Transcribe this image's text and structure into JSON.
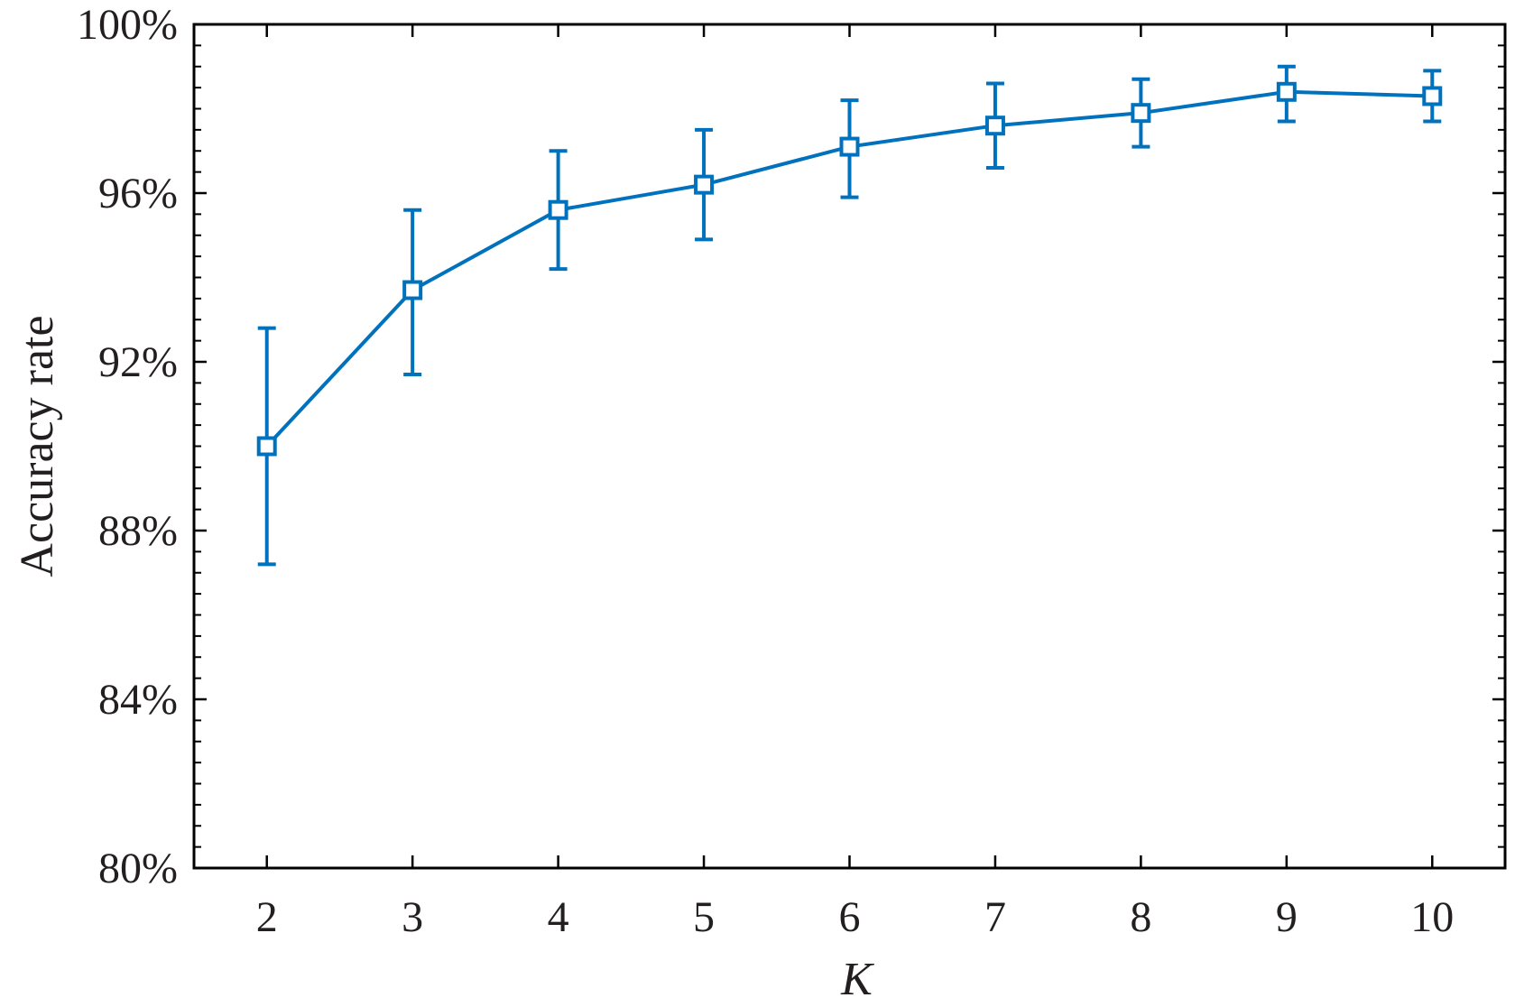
{
  "chart_data": {
    "type": "line",
    "xlabel": "K",
    "ylabel": "Accuracy rate",
    "x_ticks": [
      "2",
      "3",
      "4",
      "5",
      "6",
      "7",
      "8",
      "9",
      "10"
    ],
    "y_ticks": [
      "80%",
      "84%",
      "88%",
      "92%",
      "96%",
      "100%"
    ],
    "xlim": [
      1.5,
      10.5
    ],
    "ylim": [
      80,
      100
    ],
    "y_tick_values": [
      80,
      84,
      88,
      92,
      96,
      100
    ],
    "y_minor_step": 0.5,
    "grid": false,
    "series": [
      {
        "marker": "square",
        "color": "#0072BD",
        "x": [
          2,
          3,
          4,
          5,
          6,
          7,
          8,
          9,
          10
        ],
        "y": [
          90.0,
          93.7,
          95.6,
          96.2,
          97.1,
          97.6,
          97.9,
          98.4,
          98.3
        ],
        "error_low": [
          2.8,
          2.0,
          1.4,
          1.3,
          1.2,
          1.0,
          0.8,
          0.7,
          0.6
        ],
        "error_high": [
          2.8,
          1.9,
          1.4,
          1.3,
          1.1,
          1.0,
          0.8,
          0.6,
          0.6
        ]
      }
    ]
  }
}
